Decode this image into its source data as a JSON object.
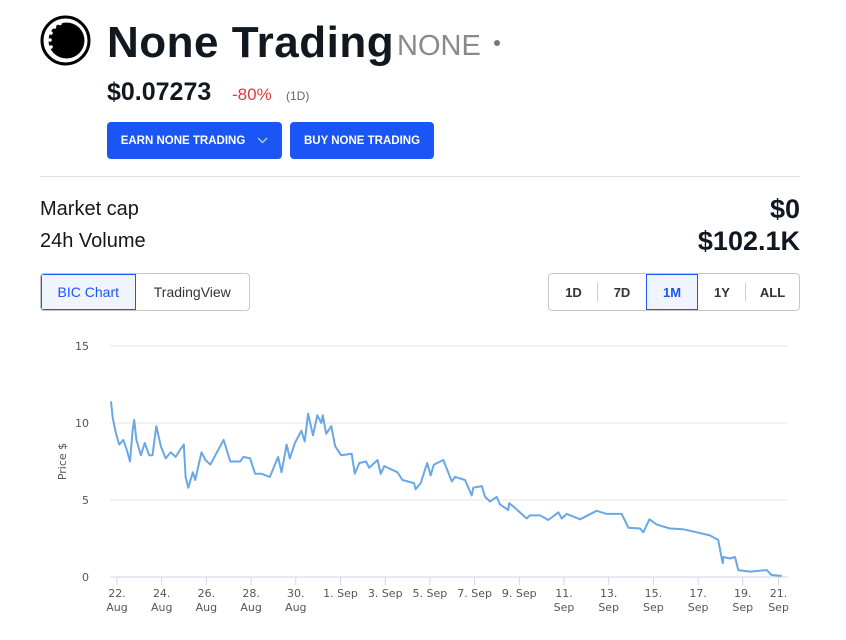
{
  "header": {
    "name": "None Trading",
    "symbol": "NONE",
    "price": "$0.07273",
    "change": "-80%",
    "period": "(1D)"
  },
  "buttons": {
    "earn": "EARN NONE TRADING",
    "buy": "BUY NONE TRADING"
  },
  "stats": {
    "market_cap_label": "Market cap",
    "market_cap": "$0",
    "volume_label": "24h Volume",
    "volume": "$102.1K"
  },
  "chart_tabs": [
    {
      "label": "BIC Chart",
      "active": true
    },
    {
      "label": "TradingView",
      "active": false
    }
  ],
  "ranges": [
    {
      "label": "1D",
      "active": false
    },
    {
      "label": "7D",
      "active": false
    },
    {
      "label": "1M",
      "active": true
    },
    {
      "label": "1Y",
      "active": false
    },
    {
      "label": "ALL",
      "active": false
    }
  ],
  "colors": {
    "accent": "#1a55f5",
    "negative": "#e8383d",
    "line": "#6aa7e6"
  },
  "chart_data": {
    "type": "line",
    "ylabel": "Price $",
    "ylim": [
      0,
      15
    ],
    "yticks": [
      "0",
      "5",
      "10",
      "15"
    ],
    "grid": true,
    "x_unit": "days since 22 Aug",
    "xlim": [
      -0.3,
      30
    ],
    "xticks": [
      {
        "d": 0,
        "l1": "22.",
        "l2": "Aug"
      },
      {
        "d": 2,
        "l1": "24.",
        "l2": "Aug"
      },
      {
        "d": 4,
        "l1": "26.",
        "l2": "Aug"
      },
      {
        "d": 6,
        "l1": "28.",
        "l2": "Aug"
      },
      {
        "d": 8,
        "l1": "30.",
        "l2": "Aug"
      },
      {
        "d": 10,
        "l1": "1. Sep",
        "l2": ""
      },
      {
        "d": 12,
        "l1": "3. Sep",
        "l2": ""
      },
      {
        "d": 14,
        "l1": "5. Sep",
        "l2": ""
      },
      {
        "d": 16,
        "l1": "7. Sep",
        "l2": ""
      },
      {
        "d": 18,
        "l1": "9. Sep",
        "l2": ""
      },
      {
        "d": 20,
        "l1": "11.",
        "l2": "Sep"
      },
      {
        "d": 22,
        "l1": "13.",
        "l2": "Sep"
      },
      {
        "d": 24,
        "l1": "15.",
        "l2": "Sep"
      },
      {
        "d": 26,
        "l1": "17.",
        "l2": "Sep"
      },
      {
        "d": 28,
        "l1": "19.",
        "l2": "Sep"
      },
      {
        "d": 29.6,
        "l1": "21.",
        "l2": "Sep"
      }
    ],
    "series": [
      {
        "name": "Price",
        "points": [
          [
            -0.27,
            11.4
          ],
          [
            -0.19,
            10.3
          ],
          [
            -0.04,
            9.3
          ],
          [
            0.1,
            8.6
          ],
          [
            0.28,
            8.9
          ],
          [
            0.43,
            8.3
          ],
          [
            0.58,
            7.5
          ],
          [
            0.7,
            9.5
          ],
          [
            0.77,
            10.2
          ],
          [
            0.87,
            8.9
          ],
          [
            1.07,
            7.9
          ],
          [
            1.24,
            8.7
          ],
          [
            1.44,
            7.9
          ],
          [
            1.59,
            7.9
          ],
          [
            1.76,
            9.8
          ],
          [
            1.96,
            8.5
          ],
          [
            2.18,
            7.7
          ],
          [
            2.4,
            8.1
          ],
          [
            2.62,
            7.8
          ],
          [
            2.84,
            8.3
          ],
          [
            2.99,
            8.6
          ],
          [
            3.07,
            6.5
          ],
          [
            3.19,
            5.8
          ],
          [
            3.39,
            6.8
          ],
          [
            3.5,
            6.3
          ],
          [
            3.78,
            8.1
          ],
          [
            3.96,
            7.6
          ],
          [
            4.18,
            7.3
          ],
          [
            4.47,
            8.1
          ],
          [
            4.77,
            8.9
          ],
          [
            5.07,
            7.5
          ],
          [
            5.51,
            7.5
          ],
          [
            5.66,
            7.8
          ],
          [
            5.96,
            7.7
          ],
          [
            6.18,
            6.7
          ],
          [
            6.47,
            6.7
          ],
          [
            6.84,
            6.5
          ],
          [
            7.21,
            7.8
          ],
          [
            7.36,
            6.8
          ],
          [
            7.59,
            8.6
          ],
          [
            7.73,
            7.7
          ],
          [
            7.96,
            8.7
          ],
          [
            8.25,
            9.5
          ],
          [
            8.4,
            8.8
          ],
          [
            8.55,
            10.6
          ],
          [
            8.77,
            9.2
          ],
          [
            8.96,
            10.5
          ],
          [
            9.14,
            10.0
          ],
          [
            9.21,
            10.5
          ],
          [
            9.36,
            9.3
          ],
          [
            9.59,
            9.8
          ],
          [
            9.76,
            8.5
          ],
          [
            10.03,
            7.9
          ],
          [
            10.5,
            8.0
          ],
          [
            10.64,
            6.7
          ],
          [
            10.84,
            7.4
          ],
          [
            11.14,
            7.5
          ],
          [
            11.28,
            7.1
          ],
          [
            11.66,
            7.6
          ],
          [
            11.8,
            6.7
          ],
          [
            11.96,
            7.2
          ],
          [
            12.55,
            6.8
          ],
          [
            12.77,
            6.3
          ],
          [
            13.29,
            6.1
          ],
          [
            13.36,
            5.7
          ],
          [
            13.59,
            6.1
          ],
          [
            13.88,
            7.4
          ],
          [
            14.03,
            6.6
          ],
          [
            14.18,
            7.3
          ],
          [
            14.6,
            7.6
          ],
          [
            14.98,
            6.2
          ],
          [
            15.12,
            6.5
          ],
          [
            15.57,
            6.3
          ],
          [
            15.87,
            5.3
          ],
          [
            15.94,
            5.8
          ],
          [
            16.32,
            5.9
          ],
          [
            16.47,
            5.2
          ],
          [
            16.69,
            4.9
          ],
          [
            16.99,
            5.2
          ],
          [
            17.14,
            4.7
          ],
          [
            17.51,
            4.35
          ],
          [
            17.55,
            4.8
          ],
          [
            17.8,
            4.5
          ],
          [
            18.33,
            3.8
          ],
          [
            18.48,
            4.0
          ],
          [
            18.93,
            4.0
          ],
          [
            19.3,
            3.7
          ],
          [
            19.75,
            4.2
          ],
          [
            19.9,
            3.8
          ],
          [
            20.12,
            4.1
          ],
          [
            20.72,
            3.75
          ],
          [
            21.46,
            4.3
          ],
          [
            21.91,
            4.1
          ],
          [
            22.58,
            4.1
          ],
          [
            22.88,
            3.2
          ],
          [
            23.4,
            3.15
          ],
          [
            23.55,
            2.9
          ],
          [
            23.82,
            3.75
          ],
          [
            24.15,
            3.4
          ],
          [
            24.74,
            3.15
          ],
          [
            25.34,
            3.1
          ],
          [
            25.94,
            2.9
          ],
          [
            26.53,
            2.7
          ],
          [
            26.9,
            2.4
          ],
          [
            27.1,
            0.9
          ],
          [
            27.13,
            1.3
          ],
          [
            27.43,
            1.2
          ],
          [
            27.65,
            1.3
          ],
          [
            27.8,
            0.45
          ],
          [
            28.32,
            0.35
          ],
          [
            29.07,
            0.45
          ],
          [
            29.29,
            0.13
          ],
          [
            29.74,
            0.07
          ]
        ]
      }
    ]
  }
}
